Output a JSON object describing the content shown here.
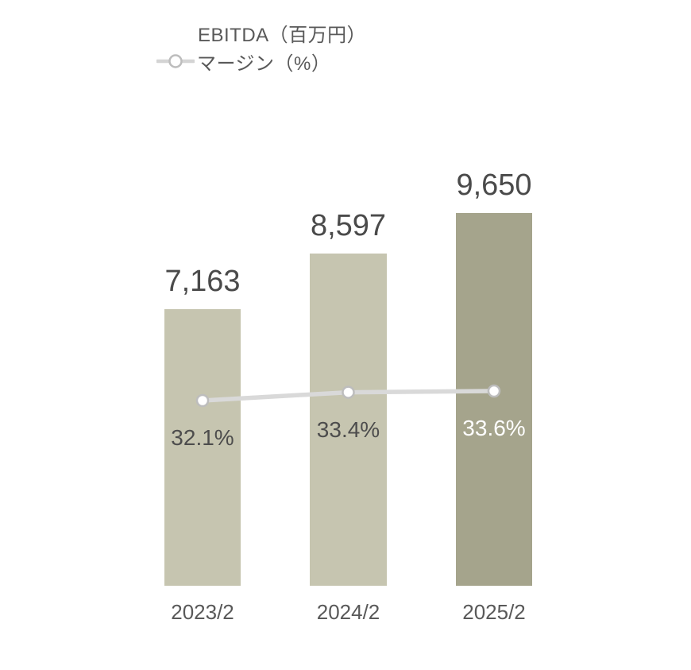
{
  "chart_data": {
    "type": "bar",
    "subtype": "bar-line-combo",
    "categories": [
      "2023/2",
      "2024/2",
      "2025/2"
    ],
    "series": [
      {
        "name": "EBITDA（百万円）",
        "type": "bar",
        "values": [
          7163,
          8597,
          9650
        ],
        "value_labels": [
          "7,163",
          "8,597",
          "9,650"
        ],
        "bar_colors": [
          "#c6c5b0",
          "#c6c5b0",
          "#a5a48c"
        ]
      },
      {
        "name": "マージン（%）",
        "type": "line",
        "values": [
          32.1,
          33.4,
          33.6
        ],
        "value_labels": [
          "32.1%",
          "33.4%",
          "33.6%"
        ],
        "label_colors": [
          "#4d4d4d",
          "#4d4d4d",
          "#ffffff"
        ],
        "line_color": "#d9d9d9",
        "marker": "white-circle"
      }
    ],
    "legend": {
      "position": "top-left",
      "items": [
        {
          "label": "EBITDA（百万円）",
          "swatch": "bar",
          "color": "#c6c5b0"
        },
        {
          "label": "マージン（%）",
          "swatch": "line-marker",
          "color": "#d4d4d4"
        }
      ]
    },
    "grid": false,
    "y_axis_visible": false,
    "x_axis_visible": true,
    "ylim_bar": [
      0,
      9650
    ],
    "text_colors": {
      "values": "#4a4a4a",
      "axis": "#595959"
    },
    "marker_stroke_color": "#bdbdbd"
  }
}
